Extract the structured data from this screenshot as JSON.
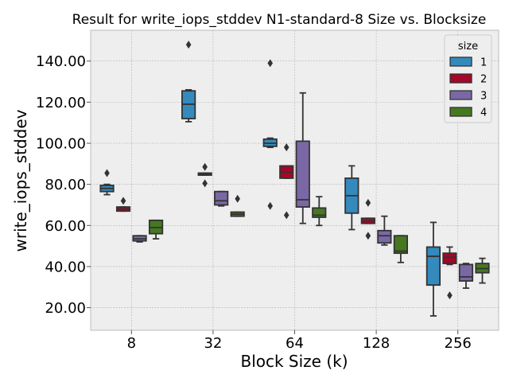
{
  "chart_data": {
    "type": "box",
    "title": "Result for write_iops_stddev N1-standard-8 Size vs. Blocksize",
    "xlabel": "Block Size (k)",
    "ylabel": "write_iops_stddev",
    "categories": [
      "8",
      "32",
      "64",
      "128",
      "256"
    ],
    "ylim": [
      9,
      155
    ],
    "yticks": [
      20,
      40,
      60,
      80,
      100,
      120,
      140
    ],
    "ytick_labels": [
      "20.00",
      "40.00",
      "60.00",
      "80.00",
      "100.00",
      "120.00",
      "140.00"
    ],
    "grid": true,
    "legend": {
      "title": "size",
      "placement": "top-right"
    },
    "series": [
      {
        "name": "1",
        "color": "#348ABD",
        "boxes": [
          {
            "category": "8",
            "whislo": 75,
            "q1": 76.5,
            "med": 78,
            "q3": 79.5,
            "whishi": 80,
            "fliers": [
              85.5
            ]
          },
          {
            "category": "32",
            "whislo": 110.5,
            "q1": 112,
            "med": 119,
            "q3": 125.5,
            "whishi": 126,
            "fliers": [
              148
            ]
          },
          {
            "category": "64",
            "whislo": 98,
            "q1": 98.5,
            "med": 100,
            "q3": 102,
            "whishi": 102.5,
            "fliers": [
              139,
              69.5
            ]
          },
          {
            "category": "128",
            "whislo": 58,
            "q1": 66,
            "med": 74.5,
            "q3": 83,
            "whishi": 89,
            "fliers": []
          },
          {
            "category": "256",
            "whislo": 16,
            "q1": 31,
            "med": 45,
            "q3": 49.5,
            "whishi": 61.5,
            "fliers": []
          }
        ]
      },
      {
        "name": "2",
        "color": "#A60628",
        "boxes": [
          {
            "category": "8",
            "whislo": 67,
            "q1": 67,
            "med": 68,
            "q3": 69,
            "whishi": 69,
            "fliers": [
              72
            ]
          },
          {
            "category": "32",
            "whislo": 84.5,
            "q1": 84.5,
            "med": 85,
            "q3": 85.5,
            "whishi": 85.5,
            "fliers": [
              88.5,
              80.5
            ]
          },
          {
            "category": "64",
            "whislo": 83,
            "q1": 83,
            "med": 86,
            "q3": 89,
            "whishi": 89,
            "fliers": [
              98,
              65
            ]
          },
          {
            "category": "128",
            "whislo": 61,
            "q1": 61,
            "med": 62,
            "q3": 63.5,
            "whishi": 63.5,
            "fliers": [
              71,
              55
            ]
          },
          {
            "category": "256",
            "whislo": 41,
            "q1": 41.5,
            "med": 44.5,
            "q3": 46.5,
            "whishi": 49.5,
            "fliers": [
              26
            ]
          }
        ]
      },
      {
        "name": "3",
        "color": "#7A68A6",
        "boxes": [
          {
            "category": "8",
            "whislo": 52,
            "q1": 52.5,
            "med": 53.5,
            "q3": 55,
            "whishi": 55,
            "fliers": []
          },
          {
            "category": "32",
            "whislo": 69.5,
            "q1": 70,
            "med": 72,
            "q3": 76.5,
            "whishi": 76.5,
            "fliers": []
          },
          {
            "category": "64",
            "whislo": 61,
            "q1": 69,
            "med": 72.5,
            "q3": 101,
            "whishi": 124.5,
            "fliers": []
          },
          {
            "category": "128",
            "whislo": 50.5,
            "q1": 51.5,
            "med": 55,
            "q3": 57.5,
            "whishi": 64.5,
            "fliers": []
          },
          {
            "category": "256",
            "whislo": 29.5,
            "q1": 33,
            "med": 35,
            "q3": 41,
            "whishi": 41.5,
            "fliers": []
          }
        ]
      },
      {
        "name": "4",
        "color": "#467821",
        "boxes": [
          {
            "category": "8",
            "whislo": 53.5,
            "q1": 56,
            "med": 59,
            "q3": 62.5,
            "whishi": 62.5,
            "fliers": []
          },
          {
            "category": "32",
            "whislo": 64.5,
            "q1": 64.5,
            "med": 65.5,
            "q3": 66.5,
            "whishi": 66.5,
            "fliers": [
              73
            ]
          },
          {
            "category": "64",
            "whislo": 60,
            "q1": 64,
            "med": 65,
            "q3": 68.5,
            "whishi": 74,
            "fliers": []
          },
          {
            "category": "128",
            "whislo": 42,
            "q1": 46.5,
            "med": 47.5,
            "q3": 55,
            "whishi": 55,
            "fliers": []
          },
          {
            "category": "256",
            "whislo": 32,
            "q1": 37,
            "med": 39,
            "q3": 41.5,
            "whishi": 44,
            "fliers": []
          }
        ]
      }
    ]
  },
  "colors": {
    "plot_background": "#EEEEEE",
    "grid": "#B2B2B2",
    "box_edge": "#333333"
  }
}
